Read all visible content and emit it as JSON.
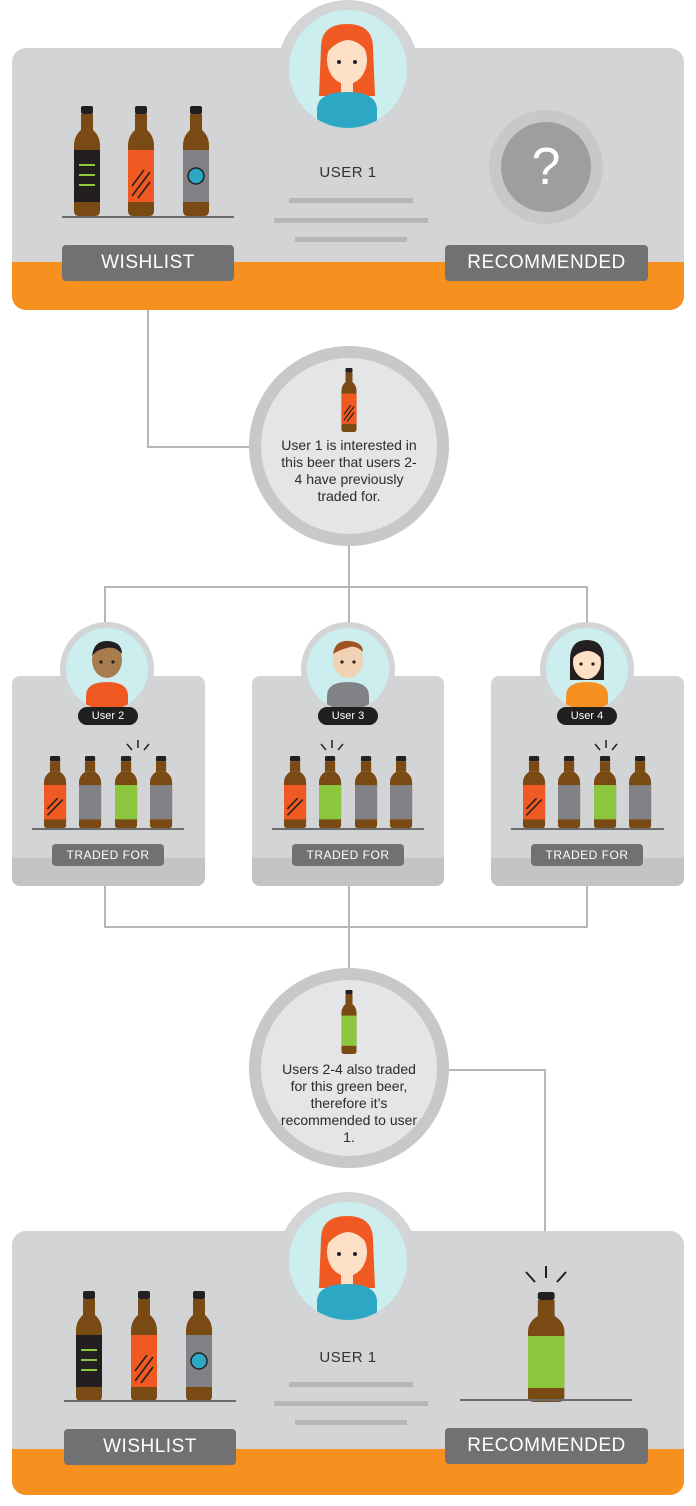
{
  "top": {
    "user_label": "USER 1",
    "wishlist_label": "WISHLIST",
    "recommended_label": "RECOMMENDED",
    "question_mark": "?"
  },
  "step1": {
    "text": "User 1 is interested in this beer that users 2-4 have previously traded for."
  },
  "users": [
    {
      "name": "User 2",
      "label": "TRADED FOR"
    },
    {
      "name": "User 3",
      "label": "TRADED FOR"
    },
    {
      "name": "User 4",
      "label": "TRADED FOR"
    }
  ],
  "step2": {
    "text": "Users 2-4 also traded for this green beer, therefore it’s recommended to user 1."
  },
  "bottom": {
    "user_label": "USER 1",
    "wishlist_label": "WISHLIST",
    "recommended_label": "RECOMMENDED"
  },
  "colors": {
    "panel": "#d3d4d6",
    "accent_orange": "#f7901e",
    "bottle_brown": "#7a4a14",
    "label_orange": "#f05a22",
    "label_green": "#8dc63f",
    "label_gray": "#808285",
    "label_black": "#231f20",
    "label_blue": "#2ca7c4",
    "pill_gray": "#707173"
  }
}
